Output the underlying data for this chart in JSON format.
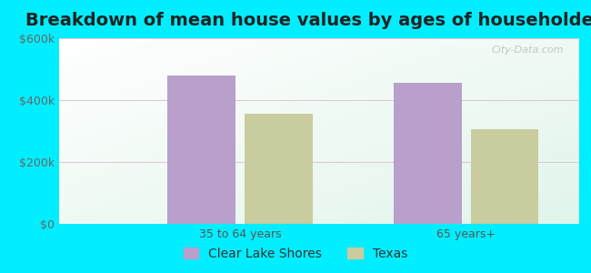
{
  "title": "Breakdown of mean house values by ages of householders",
  "categories": [
    "35 to 64 years",
    "65 years+"
  ],
  "series": {
    "Clear Lake Shores": [
      480000,
      455000
    ],
    "Texas": [
      355000,
      305000
    ]
  },
  "bar_colors": {
    "Clear Lake Shores": "#b89fcc",
    "Texas": "#c8cc9f"
  },
  "ylim": [
    0,
    600000
  ],
  "yticks": [
    0,
    200000,
    400000,
    600000
  ],
  "ytick_labels": [
    "$0",
    "$200k",
    "$400k",
    "$600k"
  ],
  "background_color": "#00eeff",
  "title_fontsize": 14,
  "tick_fontsize": 9,
  "legend_fontsize": 10,
  "bar_width": 0.3,
  "watermark": "City-Data.com"
}
